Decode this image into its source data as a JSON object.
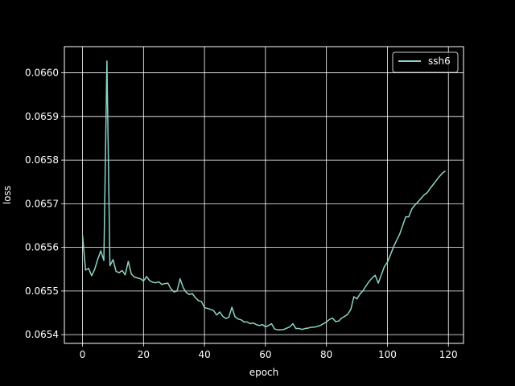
{
  "chart_data": {
    "type": "line",
    "title": "",
    "xlabel": "epoch",
    "ylabel": "loss",
    "xlim": [
      -5.95,
      124.95
    ],
    "ylim": [
      0.06538,
      0.06606
    ],
    "xticks": [
      0,
      20,
      40,
      60,
      80,
      100,
      120
    ],
    "yticks": [
      0.0654,
      0.0655,
      0.0656,
      0.0657,
      0.0658,
      0.0659,
      0.066
    ],
    "ytick_labels": [
      "0.0654",
      "0.0655",
      "0.0656",
      "0.0657",
      "0.0658",
      "0.0659",
      "0.0660"
    ],
    "grid": true,
    "legend_position": "top-right",
    "colors": {
      "background": "#000000",
      "axes": "#ffffff",
      "grid": "#ffffff",
      "series": "#8dd3c7"
    },
    "series": [
      {
        "name": "ssh6",
        "color": "#8dd3c7",
        "x": [
          0,
          1,
          2,
          3,
          4,
          5,
          6,
          7,
          8,
          9,
          10,
          11,
          12,
          13,
          14,
          15,
          16,
          17,
          18,
          19,
          20,
          21,
          22,
          23,
          24,
          25,
          26,
          27,
          28,
          29,
          30,
          31,
          32,
          33,
          34,
          35,
          36,
          37,
          38,
          39,
          40,
          41,
          42,
          43,
          44,
          45,
          46,
          47,
          48,
          49,
          50,
          51,
          52,
          53,
          54,
          55,
          56,
          57,
          58,
          59,
          60,
          61,
          62,
          63,
          64,
          65,
          66,
          67,
          68,
          69,
          70,
          71,
          72,
          73,
          74,
          75,
          76,
          77,
          78,
          79,
          80,
          81,
          82,
          83,
          84,
          85,
          86,
          87,
          88,
          89,
          90,
          91,
          92,
          93,
          94,
          95,
          96,
          97,
          98,
          99,
          100,
          101,
          102,
          103,
          104,
          105,
          106,
          107,
          108,
          109,
          110,
          111,
          112,
          113,
          114,
          115,
          116,
          117,
          118,
          119
        ],
        "y": [
          0.065628,
          0.065548,
          0.065552,
          0.065535,
          0.06555,
          0.065573,
          0.065592,
          0.06557,
          0.066027,
          0.065558,
          0.065572,
          0.065545,
          0.065542,
          0.065547,
          0.065537,
          0.065568,
          0.065539,
          0.065532,
          0.06553,
          0.065528,
          0.065523,
          0.065533,
          0.065524,
          0.06552,
          0.065519,
          0.065521,
          0.065515,
          0.065517,
          0.065518,
          0.065505,
          0.065498,
          0.0655,
          0.065528,
          0.065508,
          0.065497,
          0.065492,
          0.065494,
          0.065485,
          0.065478,
          0.065476,
          0.065462,
          0.06546,
          0.065458,
          0.065455,
          0.065445,
          0.065452,
          0.065442,
          0.065437,
          0.06544,
          0.065463,
          0.065441,
          0.065436,
          0.065434,
          0.065429,
          0.065429,
          0.065425,
          0.065427,
          0.065423,
          0.065421,
          0.065423,
          0.065418,
          0.065421,
          0.065425,
          0.065413,
          0.065411,
          0.065411,
          0.065412,
          0.065415,
          0.065418,
          0.065425,
          0.065414,
          0.065414,
          0.065412,
          0.065414,
          0.065415,
          0.065417,
          0.065417,
          0.065419,
          0.065421,
          0.065425,
          0.065429,
          0.065435,
          0.065438,
          0.06543,
          0.065431,
          0.065438,
          0.065442,
          0.065447,
          0.065458,
          0.065487,
          0.065482,
          0.065493,
          0.065501,
          0.065512,
          0.065522,
          0.06553,
          0.065536,
          0.065518,
          0.065537,
          0.065556,
          0.065566,
          0.065583,
          0.065601,
          0.065616,
          0.06563,
          0.06565,
          0.06567,
          0.06567,
          0.065688,
          0.065697,
          0.065704,
          0.065712,
          0.06572,
          0.065725,
          0.065735,
          0.065744,
          0.065753,
          0.065762,
          0.06577,
          0.065775
        ]
      }
    ]
  }
}
